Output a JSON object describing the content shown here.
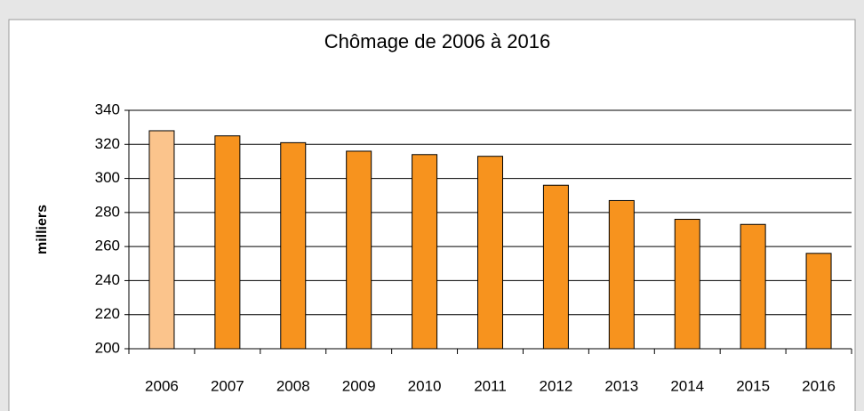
{
  "chart_data": {
    "type": "bar",
    "title": "Chômage de 2006 à 2016",
    "y_label": "milliers",
    "categories": [
      "2006",
      "2007",
      "2008",
      "2009",
      "2010",
      "2011",
      "2012",
      "2013",
      "2014",
      "2015",
      "2016"
    ],
    "values": [
      328,
      325,
      321,
      316,
      314,
      313,
      296,
      287,
      276,
      273,
      256
    ],
    "colors": [
      "#fbc48c",
      "#f7931e",
      "#f7931e",
      "#f7931e",
      "#f7931e",
      "#f7931e",
      "#f7931e",
      "#f7931e",
      "#f7931e",
      "#f7931e",
      "#f7931e"
    ],
    "ylim": [
      200,
      340
    ],
    "yticks": [
      200,
      220,
      240,
      260,
      280,
      300,
      320,
      340
    ],
    "grid": true
  }
}
